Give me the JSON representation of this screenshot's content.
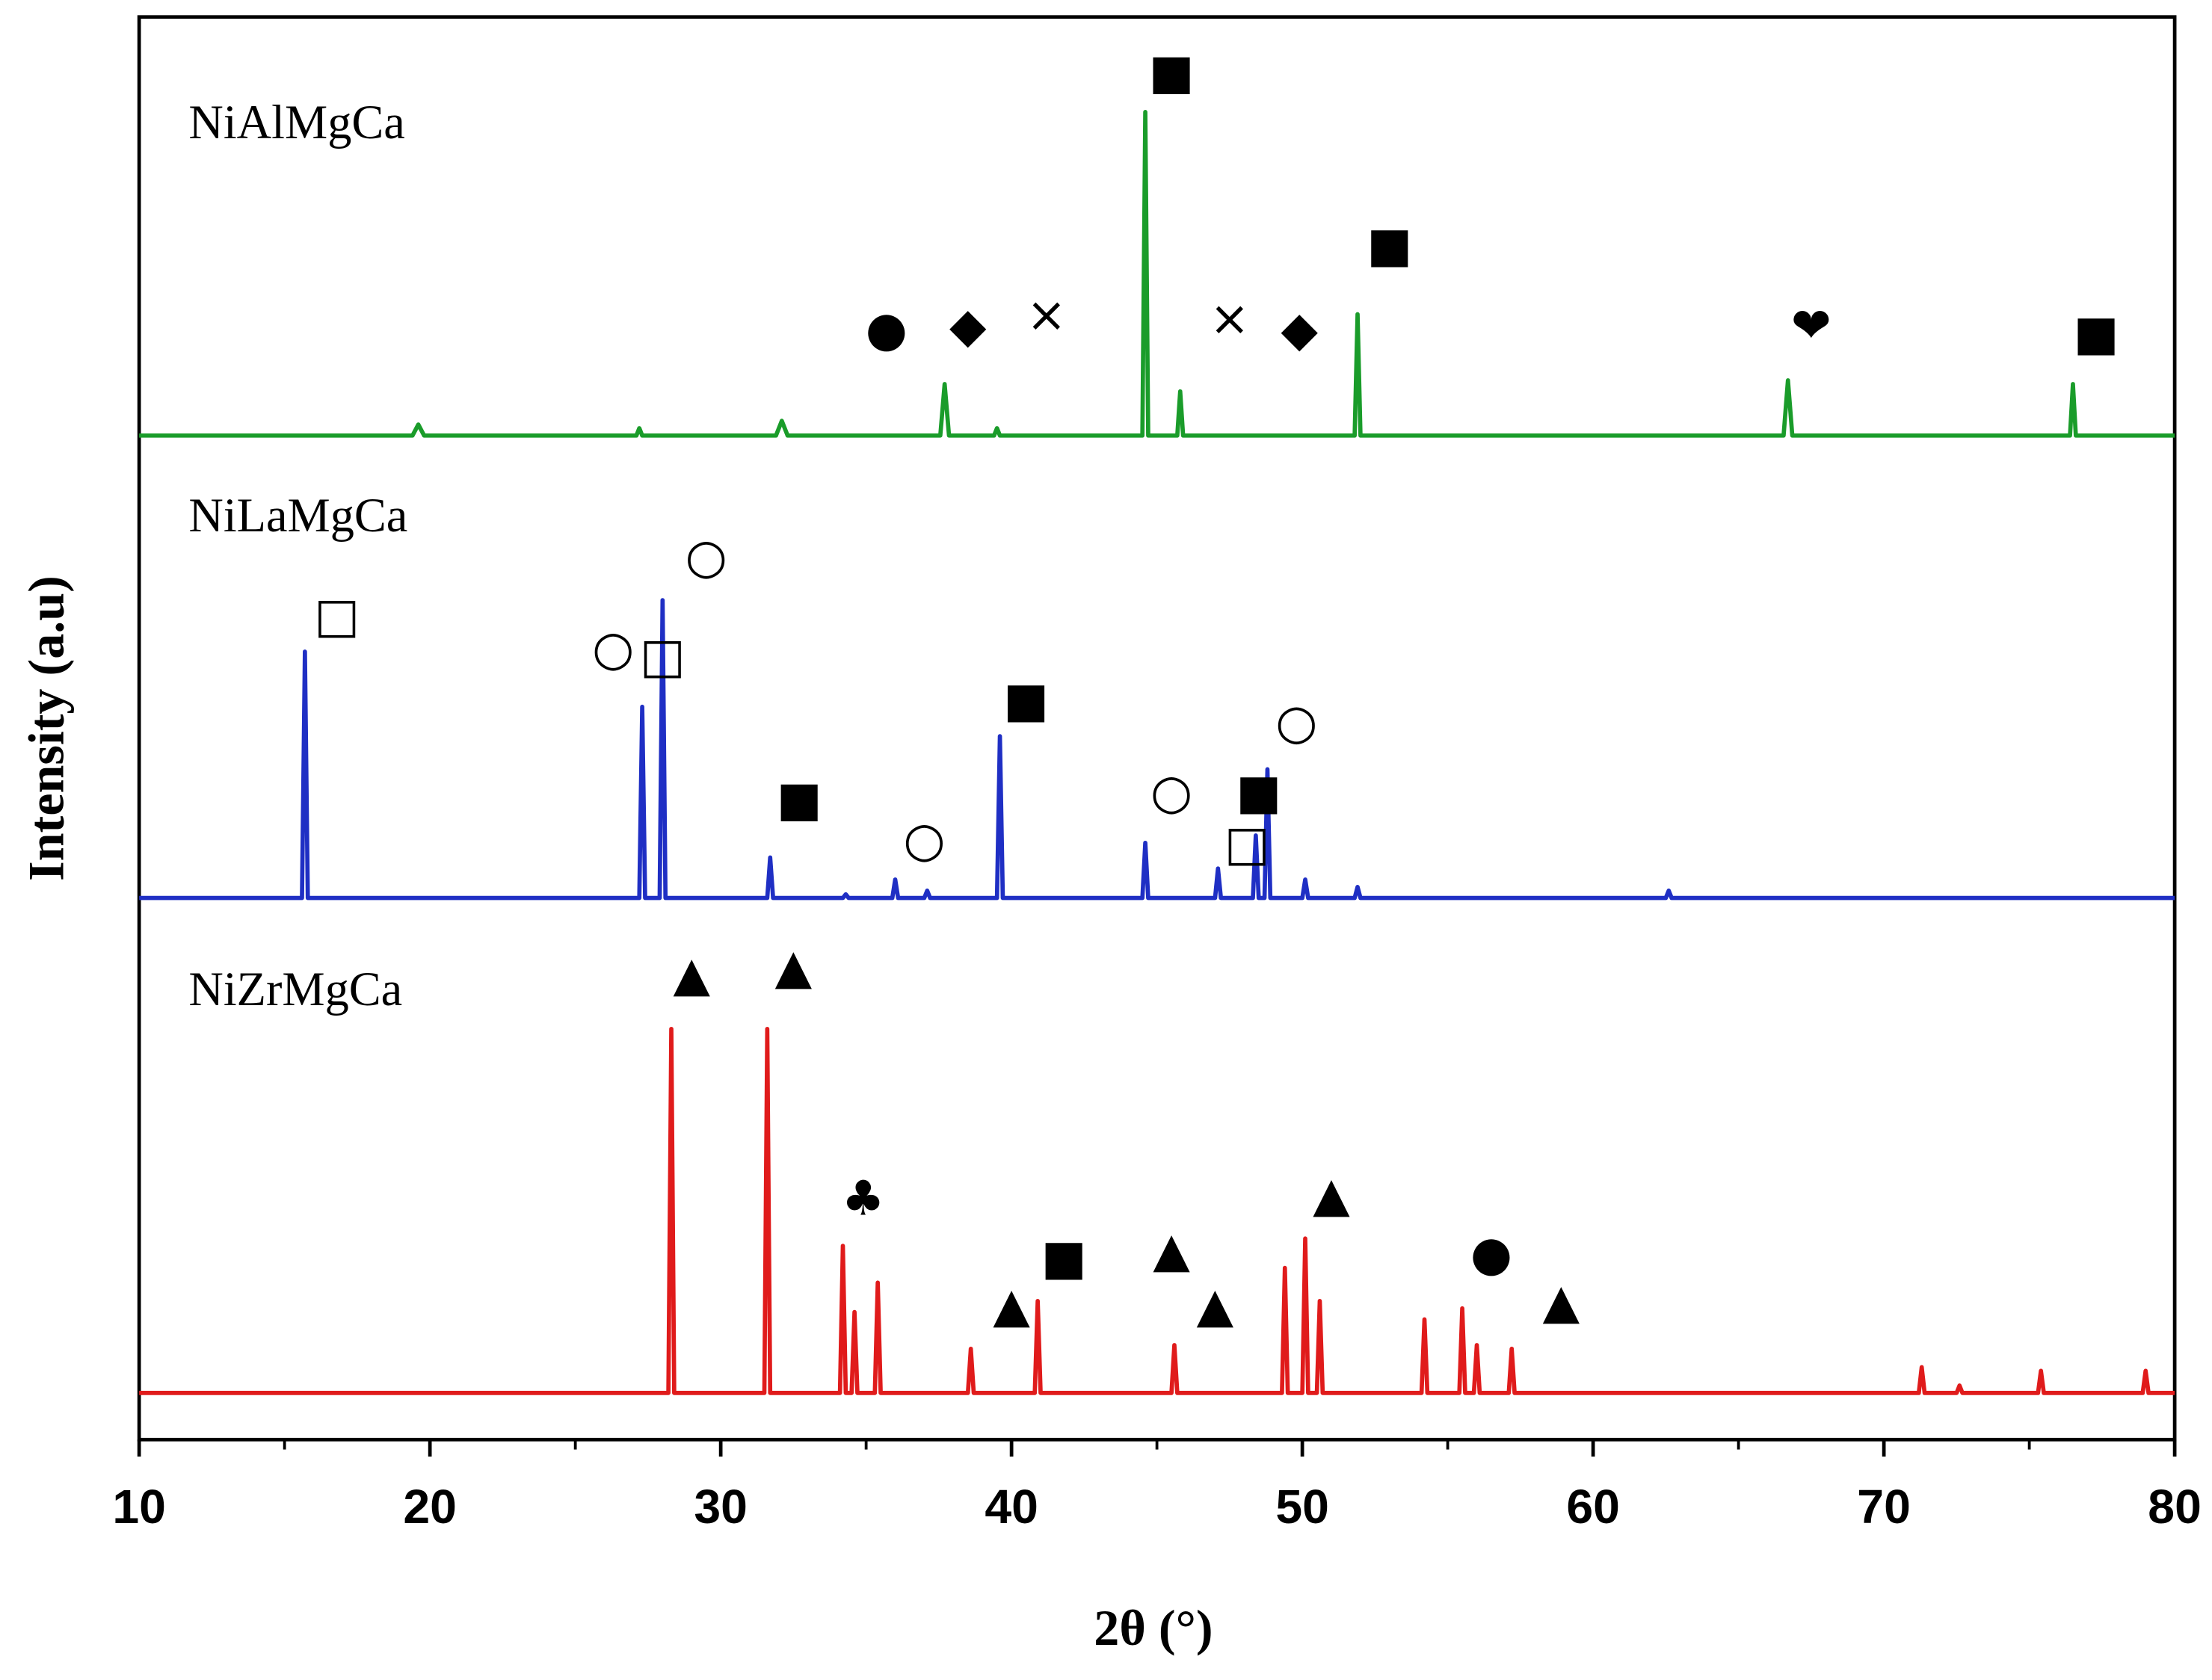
{
  "chart_data": {
    "type": "line",
    "xlabel": "2θ (°)",
    "ylabel": "Intensity (a.u)",
    "xlim": [
      10,
      80
    ],
    "xticks": [
      10,
      20,
      30,
      40,
      50,
      60,
      70,
      80
    ],
    "ylim": [
      0,
      100
    ],
    "series": [
      {
        "name": "NiAlMgCa",
        "color": "#1a9c2a",
        "x": [
          10,
          19.4,
          19.6,
          19.8,
          27.1,
          27.2,
          27.3,
          31.9,
          32.1,
          32.3,
          37.55,
          37.7,
          37.85,
          39.4,
          39.5,
          39.6,
          44.5,
          44.6,
          44.7,
          45.7,
          45.8,
          45.9,
          51.8,
          51.9,
          52.0,
          66.55,
          66.7,
          66.85,
          76.4,
          76.5,
          76.6,
          80
        ],
        "values": [
          0,
          0,
          3,
          0,
          0,
          2,
          0,
          0,
          4,
          0,
          0,
          14,
          0,
          0,
          2,
          0,
          0,
          88,
          0,
          0,
          12,
          0,
          0,
          33,
          0,
          0,
          15,
          0,
          0,
          14,
          0,
          0
        ]
      },
      {
        "name": "NiLaMgCa",
        "color": "#1f2fc4",
        "x": [
          10,
          15.6,
          15.7,
          15.8,
          27.2,
          27.3,
          27.4,
          27.9,
          28.0,
          28.1,
          31.6,
          31.7,
          31.8,
          34.2,
          34.3,
          34.4,
          35.9,
          36.0,
          36.1,
          37.0,
          37.1,
          37.2,
          39.5,
          39.6,
          39.7,
          44.5,
          44.6,
          44.7,
          47.0,
          47.1,
          47.2,
          48.3,
          48.4,
          48.5,
          48.7,
          48.8,
          48.9,
          50.0,
          50.1,
          50.2,
          51.8,
          51.9,
          52.0,
          62.5,
          62.6,
          62.7,
          80
        ],
        "values": [
          0,
          0,
          67,
          0,
          0,
          52,
          0,
          0,
          81,
          0,
          0,
          11,
          0,
          0,
          1,
          0,
          0,
          5,
          0,
          0,
          2,
          0,
          0,
          44,
          0,
          0,
          15,
          0,
          0,
          8,
          0,
          0,
          17,
          0,
          0,
          35,
          0,
          0,
          5,
          0,
          0,
          3,
          0,
          0,
          2,
          0,
          0
        ]
      },
      {
        "name": "NiZrMgCa",
        "color": "#e01b1b",
        "x": [
          10,
          28.2,
          28.3,
          28.4,
          31.5,
          31.6,
          31.7,
          34.1,
          34.2,
          34.3,
          34.5,
          34.6,
          34.7,
          35.3,
          35.4,
          35.5,
          38.5,
          38.6,
          38.7,
          40.8,
          40.9,
          41.0,
          45.5,
          45.6,
          45.7,
          49.3,
          49.4,
          49.5,
          50.0,
          50.1,
          50.2,
          50.5,
          50.6,
          50.7,
          54.1,
          54.2,
          54.3,
          55.4,
          55.5,
          55.6,
          55.9,
          56.0,
          56.1,
          57.1,
          57.2,
          57.3,
          71.2,
          71.3,
          71.4,
          72.5,
          72.6,
          72.7,
          75.3,
          75.4,
          75.5,
          78.9,
          79.0,
          79.1,
          80
        ],
        "values": [
          0,
          0,
          99,
          0,
          0,
          99,
          0,
          0,
          40,
          0,
          0,
          22,
          0,
          0,
          30,
          0,
          0,
          12,
          0,
          0,
          25,
          0,
          0,
          13,
          0,
          0,
          34,
          0,
          0,
          42,
          0,
          0,
          25,
          0,
          0,
          20,
          0,
          0,
          23,
          0,
          0,
          13,
          0,
          0,
          12,
          0,
          0,
          7,
          0,
          0,
          2,
          0,
          0,
          6,
          0,
          0,
          6,
          0,
          0
        ]
      }
    ],
    "annotations": [
      [
        {
          "text": "■",
          "x": 45.5,
          "y": 98
        },
        {
          "text": "■",
          "x": 53,
          "y": 51
        },
        {
          "text": "●",
          "x": 35.7,
          "y": 28
        },
        {
          "text": "◆",
          "x": 38.5,
          "y": 29
        },
        {
          "text": "×",
          "x": 41.2,
          "y": 32
        },
        {
          "text": "×",
          "x": 47.5,
          "y": 31
        },
        {
          "text": "◆",
          "x": 49.9,
          "y": 28
        },
        {
          "text": "❤",
          "x": 67.5,
          "y": 29
        },
        {
          "text": "■",
          "x": 77.3,
          "y": 27
        }
      ],
      [
        {
          "text": "□",
          "x": 16.8,
          "y": 76
        },
        {
          "text": "○",
          "x": 26.3,
          "y": 67
        },
        {
          "text": "□",
          "x": 28,
          "y": 65
        },
        {
          "text": "○",
          "x": 29.5,
          "y": 92
        },
        {
          "text": "■",
          "x": 32.7,
          "y": 26
        },
        {
          "text": "○",
          "x": 37,
          "y": 15
        },
        {
          "text": "■",
          "x": 40.5,
          "y": 53
        },
        {
          "text": "○",
          "x": 45.5,
          "y": 28
        },
        {
          "text": "■",
          "x": 48.5,
          "y": 28
        },
        {
          "text": "□",
          "x": 48.1,
          "y": 14
        },
        {
          "text": "○",
          "x": 49.8,
          "y": 47
        }
      ],
      [
        {
          "text": "▲",
          "x": 29,
          "y": 113
        },
        {
          "text": "▲",
          "x": 32.5,
          "y": 115
        },
        {
          "text": "♣",
          "x": 34.9,
          "y": 52
        },
        {
          "text": "▲",
          "x": 40,
          "y": 23
        },
        {
          "text": "■",
          "x": 41.8,
          "y": 36
        },
        {
          "text": "▲",
          "x": 45.5,
          "y": 38
        },
        {
          "text": "▲",
          "x": 47,
          "y": 23
        },
        {
          "text": "▲",
          "x": 51,
          "y": 53
        },
        {
          "text": "●",
          "x": 56.5,
          "y": 37
        },
        {
          "text": "▲",
          "x": 58.9,
          "y": 24
        }
      ]
    ]
  }
}
